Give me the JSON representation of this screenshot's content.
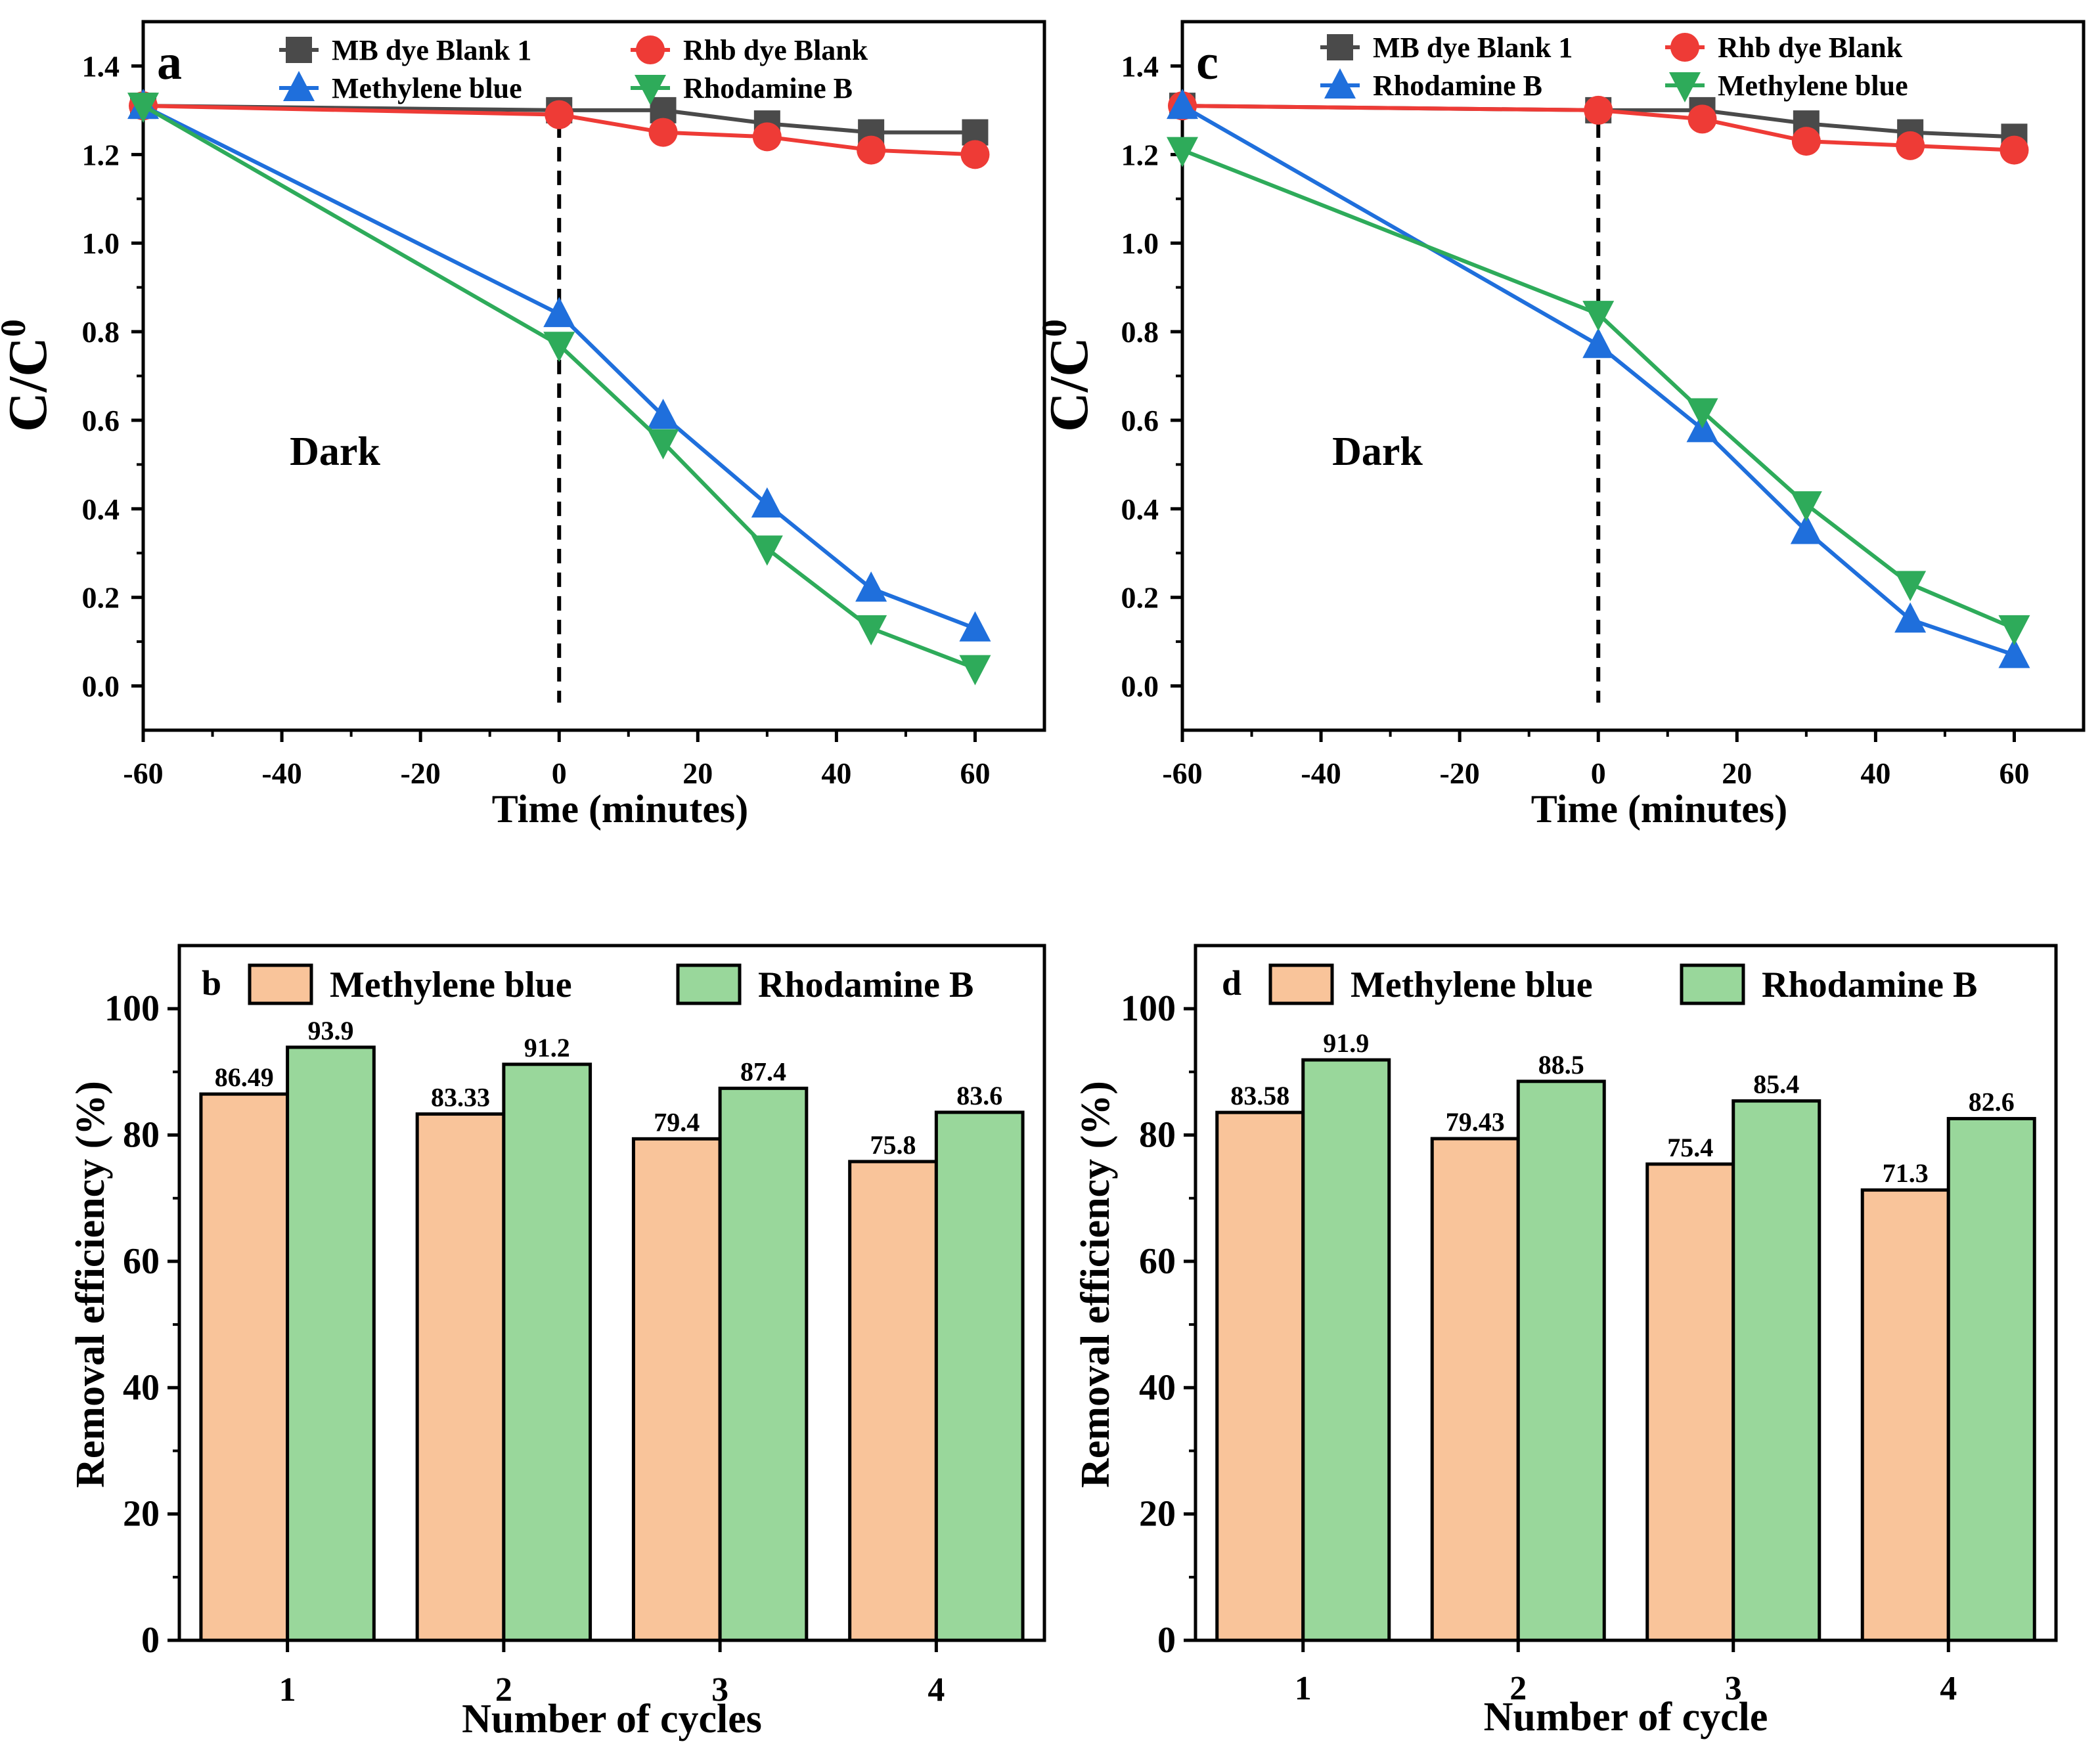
{
  "chart_data": [
    {
      "panel": "a",
      "type": "line",
      "title": "",
      "xlabel": "Time (minutes)",
      "ylabel": "C/C",
      "ylabel_sup": "0",
      "annotation": "Dark",
      "xlim": [
        -60,
        70
      ],
      "ylim": [
        -0.1,
        1.5
      ],
      "xticks": [
        -60,
        -40,
        -20,
        0,
        20,
        40,
        60
      ],
      "yticks": [
        0.0,
        0.2,
        0.4,
        0.6,
        0.8,
        1.0,
        1.2,
        1.4
      ],
      "ytick_labels": [
        "0.0",
        "0.2",
        "0.4",
        "0.6",
        "0.8",
        "1.0",
        "1.2",
        "1.4"
      ],
      "vline_x": 0,
      "x": [
        -60,
        0,
        15,
        30,
        45,
        60
      ],
      "series": [
        {
          "name": "MB dye Blank 1",
          "color": "#4a4a4a",
          "marker": "square",
          "values": [
            1.31,
            1.3,
            1.3,
            1.27,
            1.25,
            1.25
          ]
        },
        {
          "name": "Rhb dye Blank",
          "color": "#ee3b36",
          "marker": "circle",
          "values": [
            1.31,
            1.29,
            1.25,
            1.24,
            1.21,
            1.2
          ]
        },
        {
          "name": "Methylene blue",
          "color": "#1f6fdc",
          "marker": "triangle-up",
          "values": [
            1.31,
            0.84,
            0.61,
            0.41,
            0.22,
            0.13
          ]
        },
        {
          "name": "Rhodamine B",
          "color": "#2eab5a",
          "marker": "triangle-down",
          "values": [
            1.31,
            0.77,
            0.55,
            0.31,
            0.13,
            0.04
          ]
        }
      ]
    },
    {
      "panel": "b",
      "type": "bar",
      "title": "",
      "xlabel": "Number of cycles",
      "ylabel": "Removal efficiency (%)",
      "ylim": [
        0,
        110
      ],
      "yticks": [
        0,
        20,
        40,
        60,
        80,
        100
      ],
      "categories": [
        "1",
        "2",
        "3",
        "4"
      ],
      "series": [
        {
          "name": "Methylene blue",
          "color": "#f9c49a",
          "values": [
            86.49,
            83.33,
            79.4,
            75.8
          ],
          "labels": [
            "86.49",
            "83.33",
            "79.4",
            "75.8"
          ]
        },
        {
          "name": "Rhodamine B",
          "color": "#99d79b",
          "values": [
            93.9,
            91.2,
            87.4,
            83.6
          ],
          "labels": [
            "93.9",
            "91.2",
            "87.4",
            "83.6"
          ]
        }
      ]
    },
    {
      "panel": "c",
      "type": "line",
      "title": "",
      "xlabel": "Time (minutes)",
      "ylabel": "C/C",
      "ylabel_sup": "0",
      "annotation": "Dark",
      "xlim": [
        -60,
        70
      ],
      "ylim": [
        -0.1,
        1.5
      ],
      "xticks": [
        -60,
        -40,
        -20,
        0,
        20,
        40,
        60
      ],
      "yticks": [
        0.0,
        0.2,
        0.4,
        0.6,
        0.8,
        1.0,
        1.2,
        1.4
      ],
      "ytick_labels": [
        "0.0",
        "0.2",
        "0.4",
        "0.6",
        "0.8",
        "1.0",
        "1.2",
        "1.4"
      ],
      "vline_x": 0,
      "x": [
        -60,
        0,
        15,
        30,
        45,
        60
      ],
      "series": [
        {
          "name": "MB dye Blank 1",
          "color": "#4a4a4a",
          "marker": "square",
          "values": [
            1.31,
            1.3,
            1.3,
            1.27,
            1.25,
            1.24
          ]
        },
        {
          "name": "Rhb dye Blank",
          "color": "#ee3b36",
          "marker": "circle",
          "values": [
            1.31,
            1.3,
            1.28,
            1.23,
            1.22,
            1.21
          ]
        },
        {
          "name": "Rhodamine B",
          "color": "#1f6fdc",
          "marker": "triangle-up",
          "values": [
            1.31,
            0.77,
            0.58,
            0.35,
            0.15,
            0.07
          ]
        },
        {
          "name": "Methylene blue",
          "color": "#2eab5a",
          "marker": "triangle-down",
          "values": [
            1.21,
            0.84,
            0.62,
            0.41,
            0.23,
            0.13
          ]
        }
      ]
    },
    {
      "panel": "d",
      "type": "bar",
      "title": "",
      "xlabel": "Number of cycle",
      "ylabel": "Removal efficiency (%)",
      "ylim": [
        0,
        110
      ],
      "yticks": [
        0,
        20,
        40,
        60,
        80,
        100
      ],
      "categories": [
        "1",
        "2",
        "3",
        "4"
      ],
      "series": [
        {
          "name": "Methylene blue",
          "color": "#f9c49a",
          "values": [
            83.58,
            79.43,
            75.4,
            71.3
          ],
          "labels": [
            "83.58",
            "79.43",
            "75.4",
            "71.3"
          ]
        },
        {
          "name": "Rhodamine B",
          "color": "#99d79b",
          "values": [
            91.9,
            88.5,
            85.4,
            82.6
          ],
          "labels": [
            "91.9",
            "88.5",
            "85.4",
            "82.6"
          ]
        }
      ]
    }
  ]
}
